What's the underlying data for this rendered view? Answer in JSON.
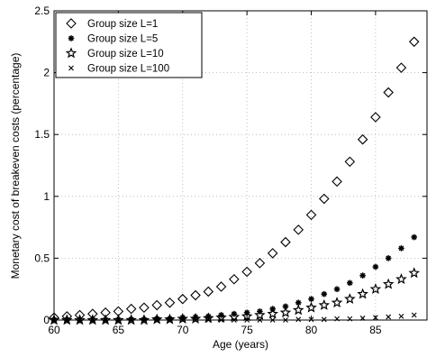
{
  "chart_data": {
    "type": "scatter",
    "xlabel": "Age (years)",
    "ylabel": "Monetary cost of breakeven costs (percentage)",
    "xlim": [
      60,
      89
    ],
    "ylim": [
      0,
      2.5
    ],
    "xticks": [
      60,
      65,
      70,
      75,
      80,
      85
    ],
    "yticks": [
      0,
      0.5,
      1,
      1.5,
      2,
      2.5
    ],
    "xtick_labels": [
      "60",
      "65",
      "70",
      "75",
      "80",
      "85"
    ],
    "ytick_labels": [
      "0",
      "0.5",
      "1",
      "1.5",
      "2",
      "2.5"
    ],
    "grid": true,
    "legend_position": "top-left",
    "x": [
      60,
      61,
      62,
      63,
      64,
      65,
      66,
      67,
      68,
      69,
      70,
      71,
      72,
      73,
      74,
      75,
      76,
      77,
      78,
      79,
      80,
      81,
      82,
      83,
      84,
      85,
      86,
      87,
      88
    ],
    "series": [
      {
        "name": "Group size L=1",
        "marker": "diamond",
        "values": [
          0.02,
          0.03,
          0.04,
          0.05,
          0.06,
          0.07,
          0.09,
          0.1,
          0.12,
          0.14,
          0.17,
          0.2,
          0.23,
          0.27,
          0.33,
          0.39,
          0.46,
          0.54,
          0.63,
          0.73,
          0.85,
          0.98,
          1.12,
          1.28,
          1.46,
          1.64,
          1.84,
          2.04,
          2.25
        ]
      },
      {
        "name": "Group size L=5",
        "marker": "asterisk",
        "values": [
          0.0,
          0.0,
          0.0,
          0.0,
          0.0,
          0.0,
          0.005,
          0.005,
          0.01,
          0.01,
          0.02,
          0.025,
          0.03,
          0.04,
          0.05,
          0.06,
          0.07,
          0.09,
          0.11,
          0.14,
          0.17,
          0.21,
          0.25,
          0.3,
          0.36,
          0.43,
          0.5,
          0.58,
          0.67
        ]
      },
      {
        "name": "Group size L=10",
        "marker": "star",
        "values": [
          0.0,
          0.0,
          0.0,
          0.0,
          0.0,
          0.0,
          0.0,
          0.0,
          0.005,
          0.005,
          0.01,
          0.01,
          0.015,
          0.02,
          0.025,
          0.03,
          0.04,
          0.05,
          0.06,
          0.08,
          0.1,
          0.12,
          0.14,
          0.17,
          0.21,
          0.25,
          0.29,
          0.33,
          0.38
        ]
      },
      {
        "name": "Group size L=100",
        "marker": "x",
        "values": [
          0.0,
          0.0,
          0.0,
          0.0,
          0.0,
          0.0,
          0.0,
          0.0,
          0.0,
          0.0,
          0.0,
          0.0,
          0.0,
          0.0,
          0.0,
          0.0,
          0.0,
          0.0,
          0.0,
          0.005,
          0.005,
          0.005,
          0.01,
          0.01,
          0.015,
          0.02,
          0.025,
          0.03,
          0.04
        ]
      }
    ]
  }
}
